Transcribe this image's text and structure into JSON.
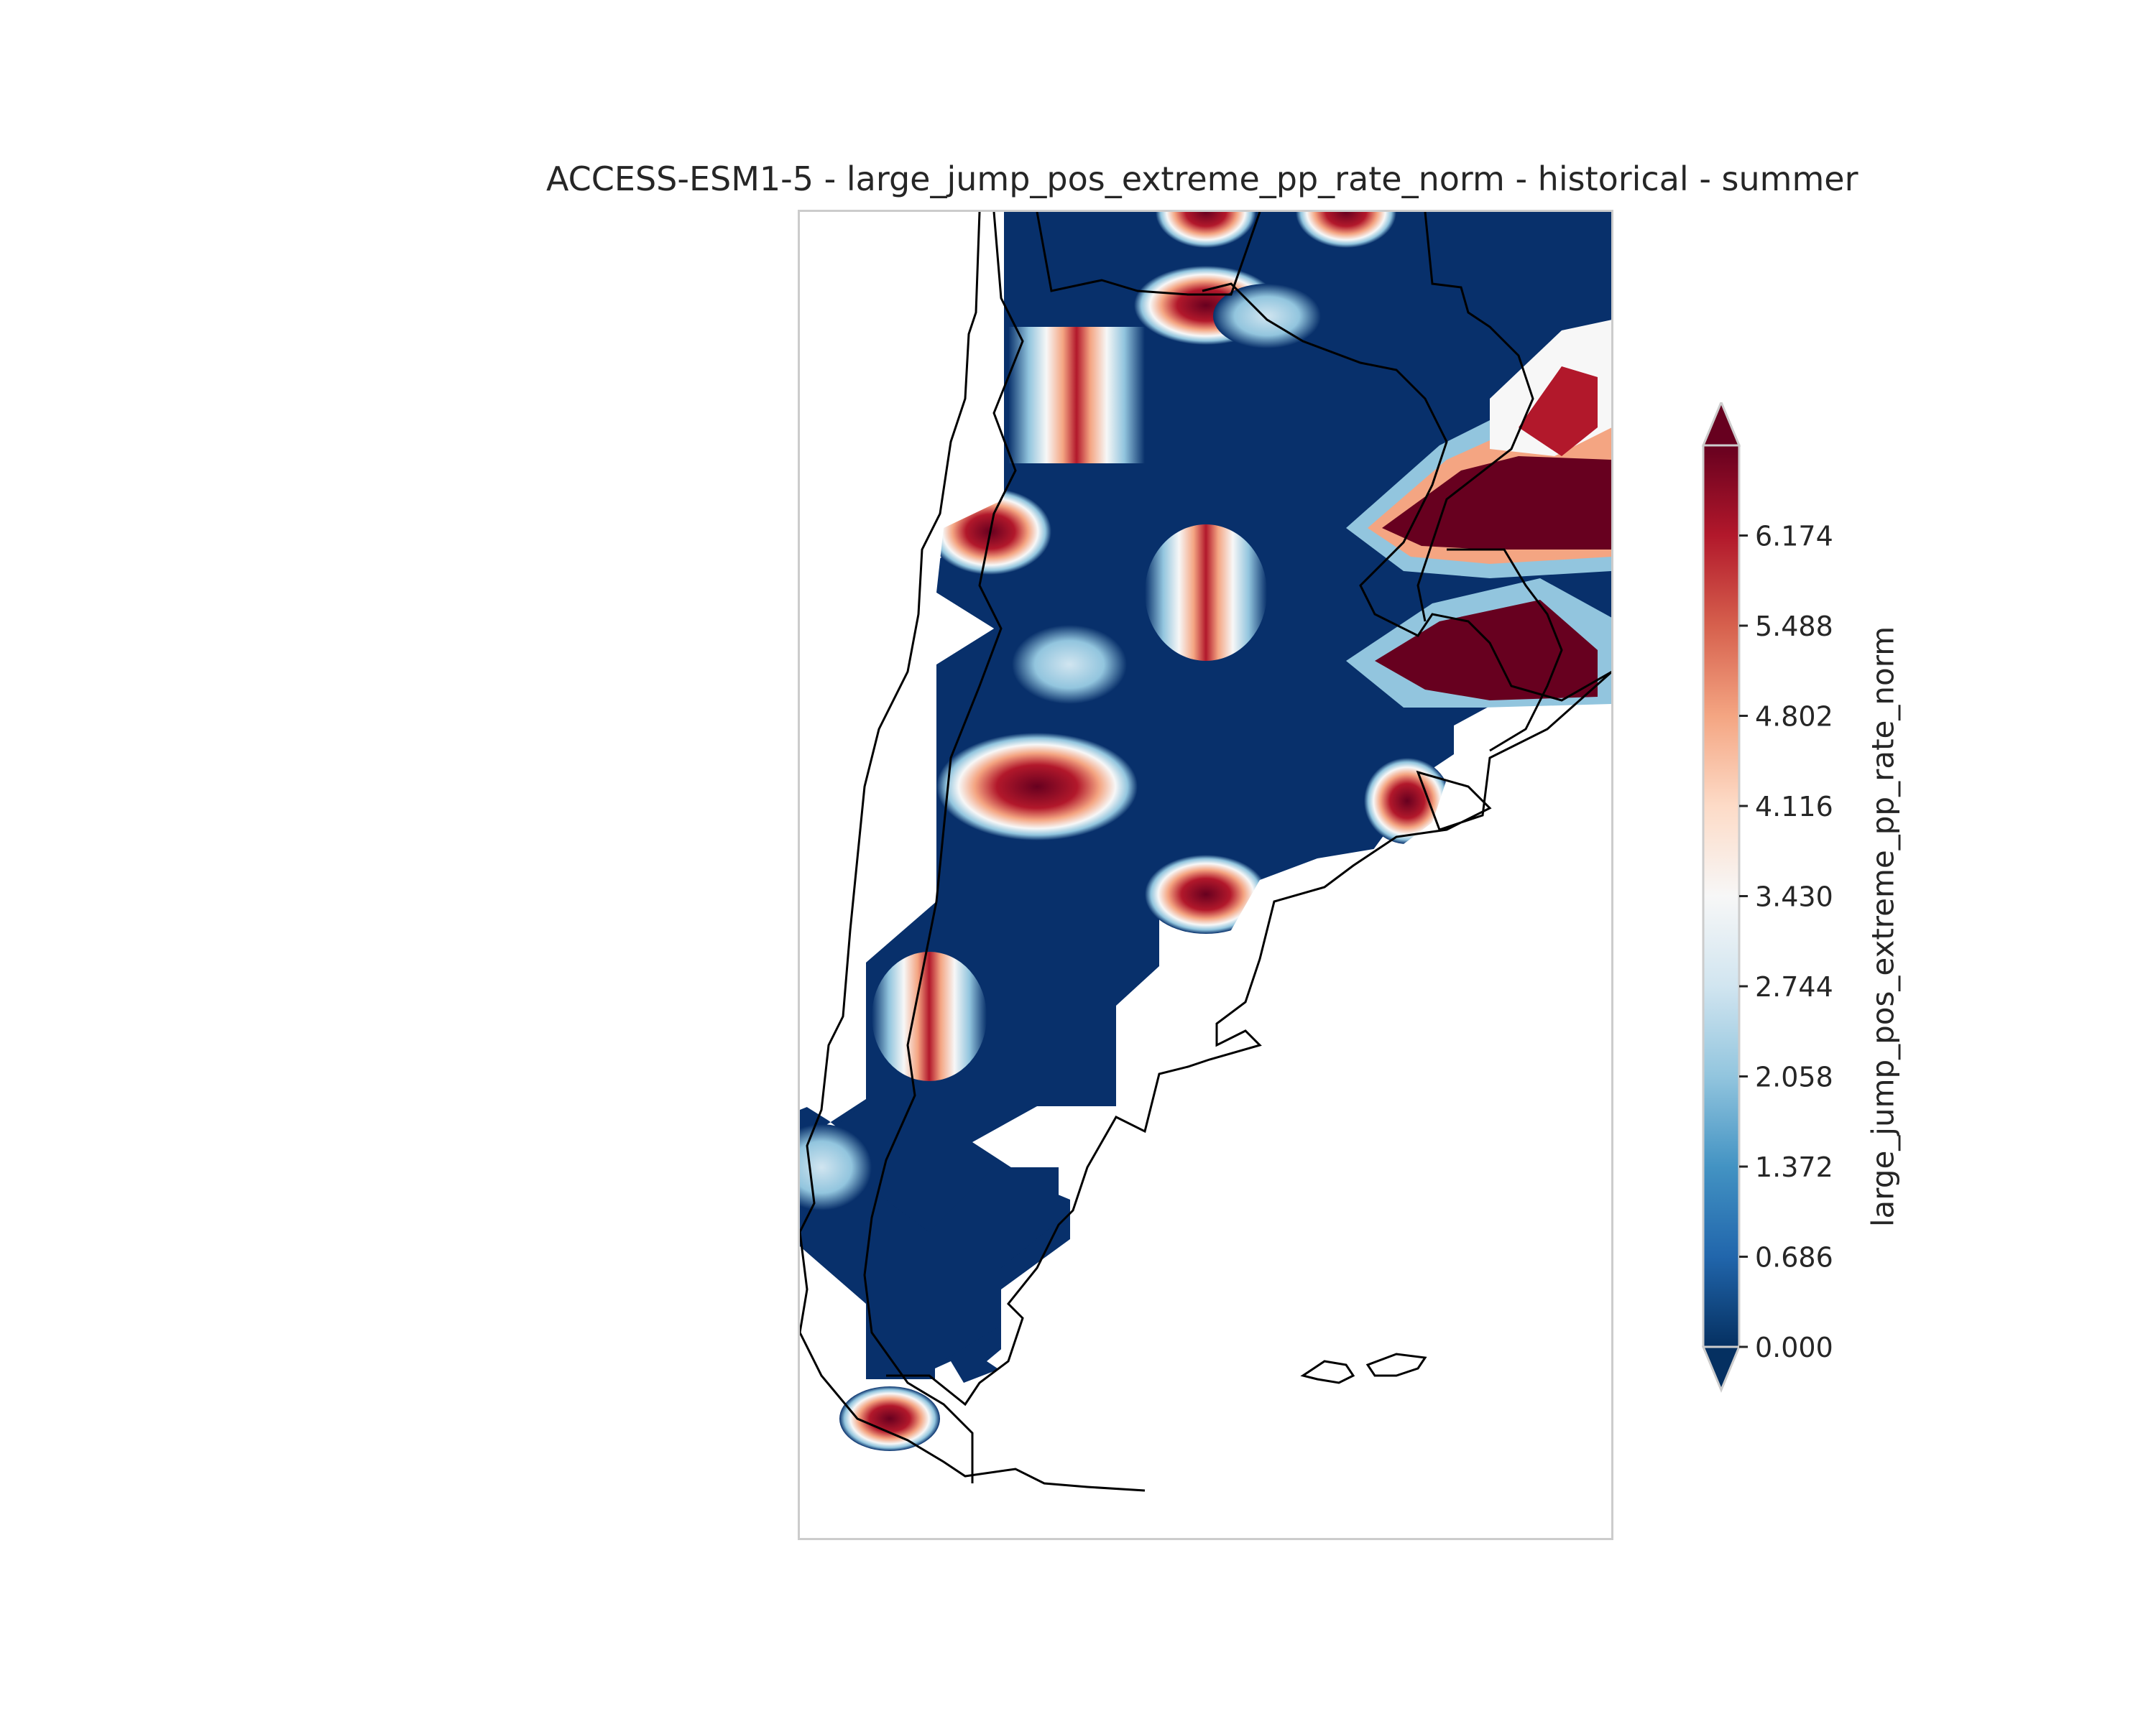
{
  "title": "ACCESS-ESM1-5 - large_jump_pos_extreme_pp_rate_norm - historical - summer",
  "colorbar": {
    "label": "large_jump_pos_extreme_pp_rate_norm",
    "ticks": [
      "0.000",
      "0.686",
      "1.372",
      "2.058",
      "2.744",
      "3.430",
      "4.116",
      "4.802",
      "5.488",
      "6.174"
    ],
    "tick_values": [
      0.0,
      0.686,
      1.372,
      2.058,
      2.744,
      3.43,
      4.116,
      4.802,
      5.488,
      6.174
    ],
    "vmin": 0.0,
    "vmax": 6.86,
    "extend": "both",
    "colormap": "RdBu_r",
    "colors": [
      "#053061",
      "#2166ac",
      "#4393c3",
      "#92c5de",
      "#d1e5f0",
      "#f7f7f7",
      "#fddbc7",
      "#f4a582",
      "#d6604d",
      "#b2182b",
      "#67001f"
    ]
  },
  "map": {
    "region": "Southern South America (Argentina / Chile)",
    "background_value_color": "#08306b",
    "coastline_color": "#000000"
  }
}
